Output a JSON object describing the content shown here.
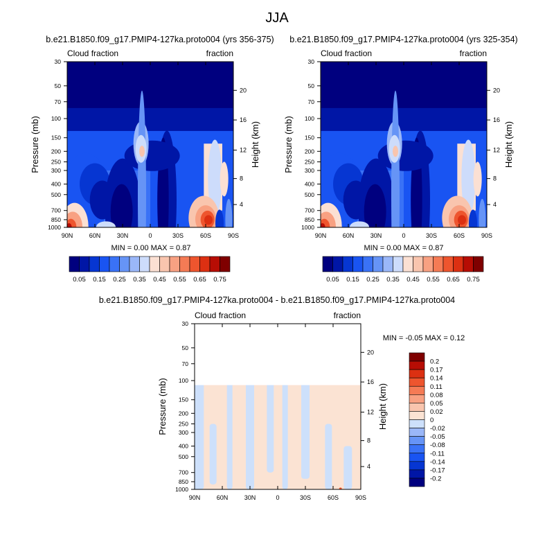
{
  "figure": {
    "main_title": "JJA"
  },
  "palette": {
    "abs": [
      "#00007f",
      "#0016a6",
      "#0636d2",
      "#1954f2",
      "#3a72f6",
      "#6694f6",
      "#9ab7f8",
      "#cddcfb",
      "#fbe0d3",
      "#f9c5ae",
      "#f8a182",
      "#f57b55",
      "#ee552e",
      "#dc3012",
      "#b70d04",
      "#7f0000"
    ],
    "diff": [
      "#00007f",
      "#0016a6",
      "#0636d2",
      "#1954f2",
      "#3a72f6",
      "#6694f6",
      "#9ab7f8",
      "#cde0fb",
      "#fbe3d3",
      "#f9c5ae",
      "#f8a182",
      "#f57b55",
      "#ee552e",
      "#dc3012",
      "#b70d04",
      "#7f0000"
    ]
  },
  "chart_data": [
    {
      "type": "heatmap",
      "title": "b.e21.B1850.f09_g17.PMIP4-127ka.proto004 (yrs 356-375)",
      "left_string": "Cloud fraction",
      "right_string": "fraction",
      "ylabel": "Pressure (mb)",
      "ylabel_right": "Height (km)",
      "x_ticks": [
        "90N",
        "60N",
        "30N",
        "0",
        "30S",
        "60S",
        "90S"
      ],
      "y_ticks": [
        "30",
        "50",
        "70",
        "100",
        "150",
        "200",
        "250",
        "300",
        "400",
        "500",
        "700",
        "850",
        "1000"
      ],
      "height_ticks": [
        "20",
        "16",
        "12",
        "8",
        "4"
      ],
      "stats": "MIN =   0.00   MAX =   0.87",
      "xlim": [
        "90N",
        "90S"
      ],
      "ylim": [
        1000,
        30
      ],
      "colorbar_labels": [
        "0.05",
        "0.15",
        "0.25",
        "0.35",
        "0.45",
        "0.55",
        "0.65",
        "0.75"
      ]
    },
    {
      "type": "heatmap",
      "title": "b.e21.B1850.f09_g17.PMIP4-127ka.proto004 (yrs 325-354)",
      "left_string": "Cloud fraction",
      "right_string": "fraction",
      "ylabel": "Pressure (mb)",
      "ylabel_right": "Height (km)",
      "x_ticks": [
        "90N",
        "60N",
        "30N",
        "0",
        "30S",
        "60S",
        "90S"
      ],
      "y_ticks": [
        "30",
        "50",
        "70",
        "100",
        "150",
        "200",
        "250",
        "300",
        "400",
        "500",
        "700",
        "850",
        "1000"
      ],
      "height_ticks": [
        "20",
        "16",
        "12",
        "8",
        "4"
      ],
      "stats": "MIN =   0.00   MAX =   0.87",
      "xlim": [
        "90N",
        "90S"
      ],
      "ylim": [
        1000,
        30
      ],
      "colorbar_labels": [
        "0.05",
        "0.15",
        "0.25",
        "0.35",
        "0.45",
        "0.55",
        "0.65",
        "0.75"
      ]
    },
    {
      "type": "heatmap",
      "title": "b.e21.B1850.f09_g17.PMIP4-127ka.proto004 - b.e21.B1850.f09_g17.PMIP4-127ka.proto004",
      "left_string": "Cloud fraction",
      "right_string": "fraction",
      "ylabel": "Pressure (mb)",
      "ylabel_right": "Height (km)",
      "x_ticks": [
        "90N",
        "60N",
        "30N",
        "0",
        "30S",
        "60S",
        "90S"
      ],
      "y_ticks": [
        "30",
        "50",
        "70",
        "100",
        "150",
        "200",
        "250",
        "300",
        "400",
        "500",
        "700",
        "850",
        "1000"
      ],
      "height_ticks": [
        "20",
        "16",
        "12",
        "8",
        "4"
      ],
      "stats": "MIN =  -0.05   MAX =   0.12",
      "xlim": [
        "90N",
        "90S"
      ],
      "ylim": [
        1000,
        30
      ],
      "colorbar_labels": [
        "0.2",
        "0.17",
        "0.14",
        "0.11",
        "0.08",
        "0.05",
        "0.02",
        "0",
        "-0.02",
        "-0.05",
        "-0.08",
        "-0.11",
        "-0.14",
        "-0.17",
        "-0.2"
      ]
    }
  ]
}
